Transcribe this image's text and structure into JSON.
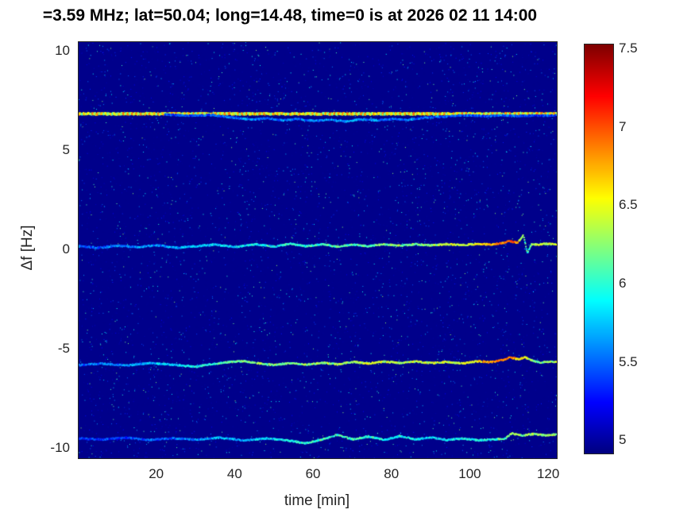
{
  "chart_data": {
    "type": "heatmap",
    "title": "=3.59 MHz;  lat=50.04; long=14.48, time=0 is at 2026 02 11 14:00",
    "xlabel": "time [min]",
    "ylabel": "Δf [Hz]",
    "xlim": [
      0,
      122
    ],
    "ylim": [
      -10.5,
      10.5
    ],
    "xticks": [
      20,
      40,
      60,
      80,
      100,
      120
    ],
    "yticks": [
      -10,
      -5,
      0,
      5,
      10
    ],
    "colormap": "jet",
    "value_range": [
      4.92,
      7.53
    ],
    "background_value": 4.95,
    "grid": false,
    "legend": "none",
    "colorbar": {
      "position": "right",
      "ticks": [
        5,
        5.5,
        6,
        6.5,
        7,
        7.5
      ],
      "range": [
        4.92,
        7.53
      ]
    },
    "noise": {
      "seed": 1337,
      "count": 9000,
      "amplitude": 1.35
    },
    "traces": [
      {
        "name": "carrier-plus-7hz",
        "style": "dashed-bright",
        "points": [
          [
            0,
            6.9,
            6.35
          ],
          [
            122,
            6.9,
            6.35
          ]
        ]
      },
      {
        "name": "doppler-echo-7hz",
        "style": "plain",
        "points": [
          [
            22,
            6.85,
            5.4
          ],
          [
            28,
            6.78,
            5.4
          ],
          [
            34,
            6.82,
            5.5
          ],
          [
            40,
            6.68,
            5.5
          ],
          [
            44,
            6.58,
            5.6
          ],
          [
            48,
            6.65,
            5.5
          ],
          [
            52,
            6.55,
            5.6
          ],
          [
            56,
            6.62,
            5.5
          ],
          [
            60,
            6.52,
            5.6
          ],
          [
            64,
            6.58,
            5.6
          ],
          [
            68,
            6.5,
            5.7
          ],
          [
            72,
            6.6,
            5.6
          ],
          [
            76,
            6.55,
            5.6
          ],
          [
            80,
            6.62,
            5.5
          ],
          [
            84,
            6.58,
            5.6
          ],
          [
            88,
            6.68,
            5.5
          ],
          [
            92,
            6.72,
            5.5
          ],
          [
            96,
            6.78,
            5.4
          ],
          [
            100,
            6.8,
            5.5
          ],
          [
            104,
            6.76,
            5.4
          ],
          [
            108,
            6.8,
            5.5
          ],
          [
            112,
            6.76,
            5.4
          ],
          [
            116,
            6.8,
            5.4
          ],
          [
            120,
            6.78,
            5.4
          ],
          [
            122,
            6.8,
            5.4
          ]
        ]
      },
      {
        "name": "carrier-0hz",
        "style": "plain",
        "points": [
          [
            0,
            0.2,
            5.5
          ],
          [
            5,
            0.12,
            5.5
          ],
          [
            10,
            0.22,
            5.6
          ],
          [
            15,
            0.15,
            5.6
          ],
          [
            20,
            0.25,
            5.6
          ],
          [
            25,
            0.12,
            5.7
          ],
          [
            30,
            0.2,
            5.7
          ],
          [
            35,
            0.28,
            5.8
          ],
          [
            40,
            0.15,
            5.8
          ],
          [
            45,
            0.3,
            5.9
          ],
          [
            50,
            0.18,
            5.9
          ],
          [
            54,
            0.32,
            6.0
          ],
          [
            58,
            0.2,
            6.0
          ],
          [
            62,
            0.3,
            6.0
          ],
          [
            66,
            0.18,
            6.1
          ],
          [
            70,
            0.28,
            6.1
          ],
          [
            74,
            0.2,
            6.1
          ],
          [
            78,
            0.3,
            6.2
          ],
          [
            82,
            0.22,
            6.2
          ],
          [
            86,
            0.3,
            6.2
          ],
          [
            90,
            0.24,
            6.3
          ],
          [
            94,
            0.3,
            6.4
          ],
          [
            98,
            0.26,
            6.4
          ],
          [
            102,
            0.32,
            6.5
          ],
          [
            105,
            0.28,
            6.7
          ],
          [
            108,
            0.35,
            6.9
          ],
          [
            110,
            0.45,
            7.0
          ],
          [
            112,
            0.38,
            6.8
          ],
          [
            113.5,
            0.75,
            6.1
          ],
          [
            114.5,
            -0.15,
            6.0
          ],
          [
            115.5,
            0.3,
            6.2
          ],
          [
            117,
            0.28,
            6.4
          ],
          [
            119,
            0.32,
            6.4
          ],
          [
            122,
            0.3,
            6.4
          ]
        ]
      },
      {
        "name": "carrier-minus-5p7hz",
        "style": "plain",
        "points": [
          [
            0,
            -5.8,
            5.5
          ],
          [
            6,
            -5.72,
            5.6
          ],
          [
            12,
            -5.82,
            5.6
          ],
          [
            18,
            -5.7,
            5.7
          ],
          [
            24,
            -5.78,
            5.8
          ],
          [
            30,
            -5.88,
            5.9
          ],
          [
            34,
            -5.75,
            6.0
          ],
          [
            38,
            -5.65,
            6.1
          ],
          [
            42,
            -5.6,
            6.2
          ],
          [
            46,
            -5.72,
            6.3
          ],
          [
            50,
            -5.8,
            6.2
          ],
          [
            54,
            -5.7,
            6.2
          ],
          [
            58,
            -5.78,
            6.2
          ],
          [
            62,
            -5.68,
            6.3
          ],
          [
            66,
            -5.76,
            6.3
          ],
          [
            70,
            -5.64,
            6.3
          ],
          [
            74,
            -5.72,
            6.4
          ],
          [
            78,
            -5.62,
            6.4
          ],
          [
            82,
            -5.7,
            6.3
          ],
          [
            86,
            -5.62,
            6.4
          ],
          [
            90,
            -5.7,
            6.4
          ],
          [
            94,
            -5.64,
            6.4
          ],
          [
            98,
            -5.72,
            6.5
          ],
          [
            102,
            -5.6,
            6.6
          ],
          [
            105,
            -5.65,
            6.8
          ],
          [
            108,
            -5.55,
            6.9
          ],
          [
            110,
            -5.4,
            6.9
          ],
          [
            112,
            -5.5,
            6.7
          ],
          [
            114,
            -5.42,
            6.5
          ],
          [
            116,
            -5.58,
            6.3
          ],
          [
            118,
            -5.68,
            6.2
          ],
          [
            120,
            -5.62,
            6.3
          ],
          [
            122,
            -5.65,
            6.3
          ]
        ]
      },
      {
        "name": "carrier-minus-9p5hz",
        "style": "plain",
        "points": [
          [
            0,
            -9.5,
            5.3
          ],
          [
            6,
            -9.56,
            5.4
          ],
          [
            12,
            -9.46,
            5.4
          ],
          [
            18,
            -9.58,
            5.5
          ],
          [
            24,
            -9.5,
            5.5
          ],
          [
            30,
            -9.56,
            5.6
          ],
          [
            36,
            -9.46,
            5.7
          ],
          [
            42,
            -9.6,
            5.7
          ],
          [
            48,
            -9.5,
            5.8
          ],
          [
            54,
            -9.62,
            5.9
          ],
          [
            58,
            -9.75,
            6.0
          ],
          [
            62,
            -9.55,
            6.1
          ],
          [
            66,
            -9.32,
            6.1
          ],
          [
            70,
            -9.55,
            6.0
          ],
          [
            74,
            -9.4,
            6.0
          ],
          [
            78,
            -9.58,
            5.9
          ],
          [
            82,
            -9.38,
            5.9
          ],
          [
            86,
            -9.55,
            5.9
          ],
          [
            90,
            -9.45,
            5.8
          ],
          [
            94,
            -9.58,
            5.8
          ],
          [
            98,
            -9.5,
            5.9
          ],
          [
            102,
            -9.6,
            5.9
          ],
          [
            106,
            -9.55,
            6.0
          ],
          [
            109,
            -9.5,
            6.1
          ],
          [
            110.5,
            -9.25,
            6.4
          ],
          [
            113,
            -9.35,
            6.3
          ],
          [
            116,
            -9.28,
            6.3
          ],
          [
            119,
            -9.34,
            6.2
          ],
          [
            122,
            -9.3,
            6.3
          ]
        ]
      }
    ]
  }
}
